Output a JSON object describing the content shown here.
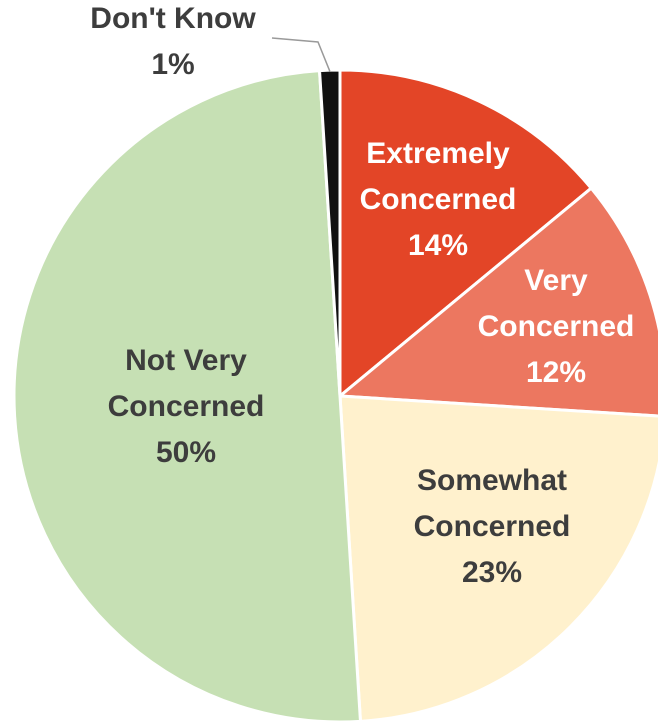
{
  "chart_data": {
    "type": "pie",
    "slices": [
      {
        "name": "Extremely Concerned",
        "value": 14,
        "label": "14%",
        "color": "#E34527",
        "label_color": "#FFFFFF"
      },
      {
        "name": "Very Concerned",
        "value": 12,
        "label": "12%",
        "color": "#EC7760",
        "label_color": "#FFFFFF"
      },
      {
        "name": "Somewhat Concerned",
        "value": 23,
        "label": "23%",
        "color": "#FFF1CD",
        "label_color": "#3D3D3D"
      },
      {
        "name": "Not Very Concerned",
        "value": 50,
        "label": "50%",
        "color": "#C6E0B4",
        "label_color": "#3D3D3D"
      },
      {
        "name": "Don't Know",
        "value": 1,
        "label": "1%",
        "color": "#111111",
        "label_color": "#3D3D3D"
      }
    ],
    "slice_text": [
      [
        "Extremely",
        "Concerned",
        "14%"
      ],
      [
        "Very",
        "Concerned",
        "12%"
      ],
      [
        "Somewhat",
        "Concerned",
        "23%"
      ],
      [
        "Not Very",
        "Concerned",
        "50%"
      ],
      [
        "Don't Know",
        "1%"
      ]
    ],
    "start_angle": "12 o'clock",
    "direction": "clockwise",
    "legend": "none",
    "leader_line_on": "Don't Know"
  }
}
